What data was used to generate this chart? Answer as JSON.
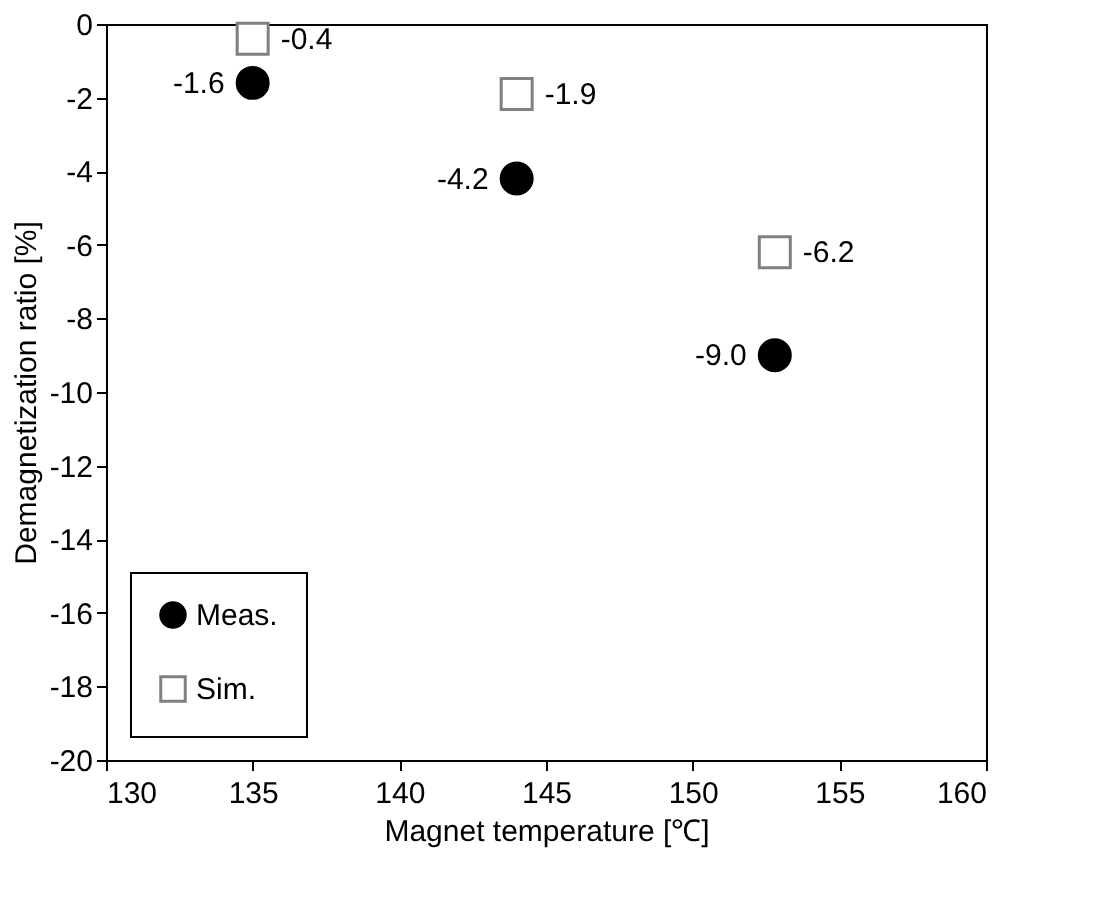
{
  "chart_data": {
    "type": "scatter",
    "xlabel": "Magnet temperature [℃]",
    "ylabel": "Demagnetization ratio [%]",
    "xlim": [
      130,
      160
    ],
    "xticks": [
      130,
      135,
      140,
      145,
      150,
      155,
      160
    ],
    "ylim": [
      -20,
      0
    ],
    "yticks": [
      0,
      -2,
      -4,
      -6,
      -8,
      -10,
      -12,
      -14,
      -16,
      -18,
      -20
    ],
    "grid": false,
    "legend": "bottom left",
    "series": [
      {
        "name": "Meas.",
        "color": "#000000",
        "marker": "circle",
        "x": [
          135,
          144,
          152.8
        ],
        "values": [
          -1.6,
          -4.2,
          -9.0
        ],
        "value_labels": [
          "-1.6",
          "-4.2",
          "-9.0"
        ]
      },
      {
        "name": "Sim.",
        "color": "#808080",
        "marker": "square",
        "x": [
          135,
          144,
          152.8
        ],
        "values": [
          -0.4,
          -1.9,
          -6.2
        ],
        "value_labels": [
          "-0.4",
          "-1.9",
          "-6.2"
        ]
      }
    ]
  }
}
